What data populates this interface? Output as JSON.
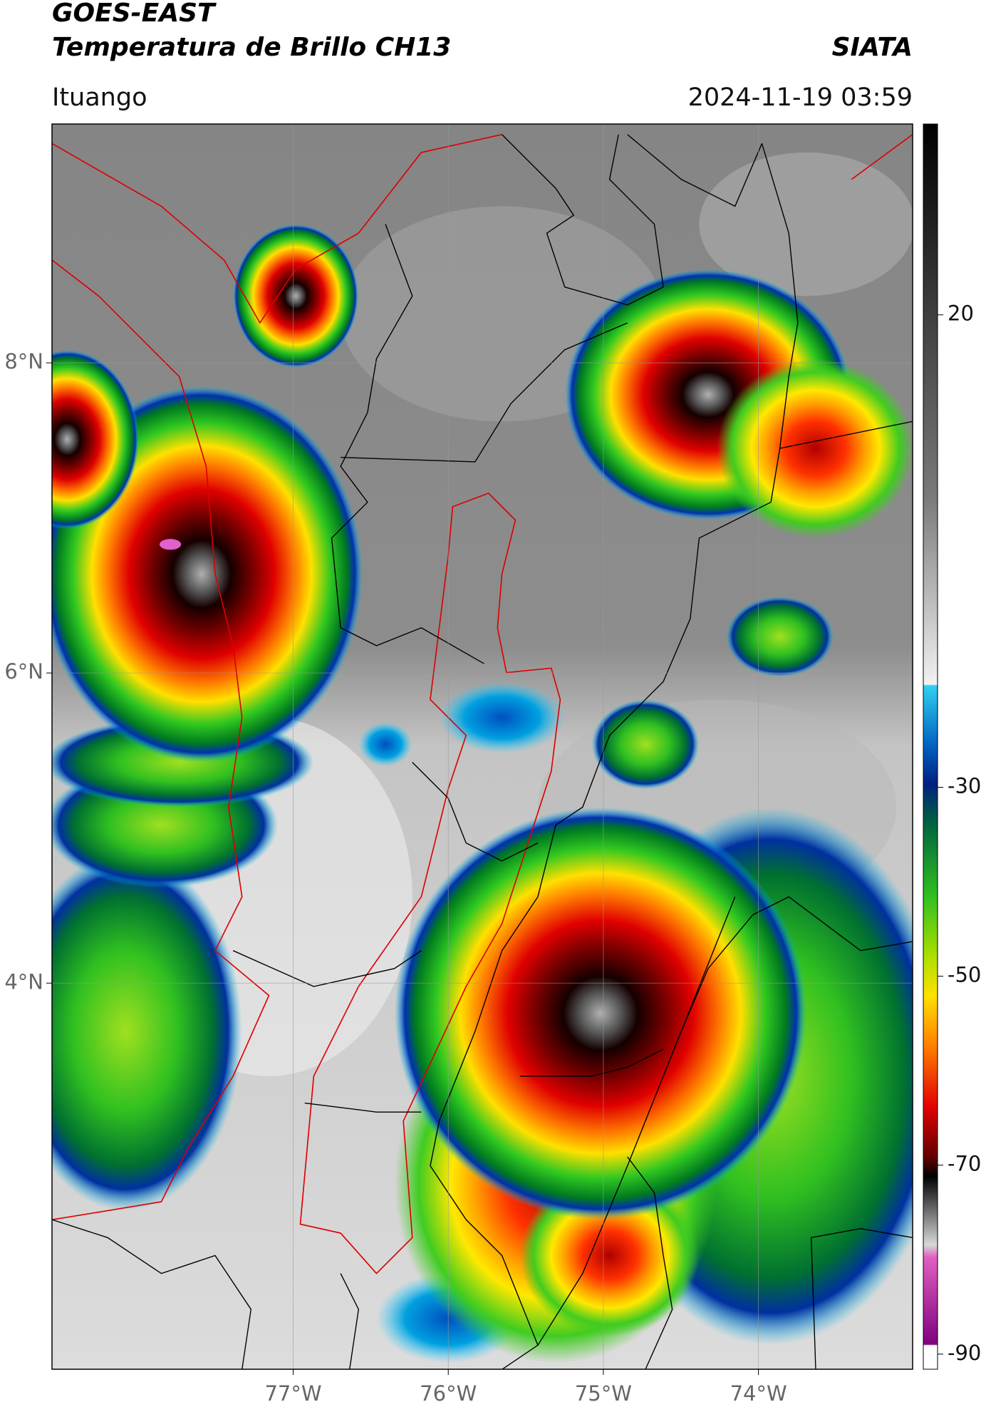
{
  "header": {
    "line1": "GOES-EAST",
    "line2": "Temperatura de Brillo CH13",
    "brand": "SIATA",
    "location": "Ituango",
    "timestamp": "2024-11-19 03:59"
  },
  "map": {
    "xlim": [
      -78.555,
      -73.006
    ],
    "ylim": [
      1.51,
      9.54
    ],
    "xticks": [
      {
        "value": -77,
        "label": "77°W"
      },
      {
        "value": -76,
        "label": "76°W"
      },
      {
        "value": -75,
        "label": "75°W"
      },
      {
        "value": -74,
        "label": "74°W"
      }
    ],
    "yticks": [
      {
        "value": 8,
        "label": "8°N"
      },
      {
        "value": 6,
        "label": "6°N"
      },
      {
        "value": 4,
        "label": "4°N"
      }
    ]
  },
  "colorbar": {
    "lim": [
      -91.6,
      40.2
    ],
    "ticks": [
      20,
      -30,
      -50,
      -70,
      -90
    ]
  }
}
